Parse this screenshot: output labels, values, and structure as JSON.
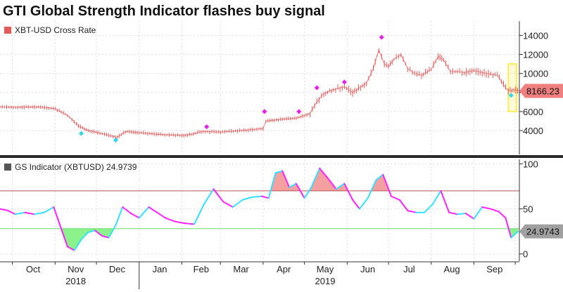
{
  "title": "GTI Global Strength Indicator flashes buy signal",
  "chart_data": [
    {
      "type": "line",
      "panel": "top",
      "legend": "XBT-USD Cross Rate",
      "last_value_label": "8166.23",
      "ylim": [
        1500,
        15500
      ],
      "yticks": [
        4000,
        6000,
        8000,
        10000,
        12000,
        14000
      ],
      "ytick_labels": [
        "4000",
        "6000",
        "8000",
        "10000",
        "12000",
        "14000"
      ],
      "series": [
        {
          "x": [
            "2018-09-22",
            "2018-10-05",
            "2018-10-20",
            "2018-11-01",
            "2018-11-10",
            "2018-11-18",
            "2018-11-25",
            "2018-12-02",
            "2018-12-10",
            "2018-12-16",
            "2018-12-22",
            "2019-01-01",
            "2019-01-15",
            "2019-02-01",
            "2019-02-08",
            "2019-02-15",
            "2019-03-01",
            "2019-03-15",
            "2019-04-01",
            "2019-04-03",
            "2019-04-15",
            "2019-04-25",
            "2019-05-05",
            "2019-05-10",
            "2019-05-15",
            "2019-05-22",
            "2019-05-30",
            "2019-06-05",
            "2019-06-15",
            "2019-06-20",
            "2019-06-24",
            "2019-06-26",
            "2019-06-28",
            "2019-07-01",
            "2019-07-05",
            "2019-07-10",
            "2019-07-15",
            "2019-07-20",
            "2019-07-25",
            "2019-08-01",
            "2019-08-06",
            "2019-08-10",
            "2019-08-15",
            "2019-08-20",
            "2019-08-25",
            "2019-09-01",
            "2019-09-10",
            "2019-09-18",
            "2019-09-24",
            "2019-09-26",
            "2019-09-30",
            "2019-10-04"
          ],
          "values": [
            6500,
            6450,
            6500,
            6300,
            5600,
            4500,
            4000,
            3800,
            3500,
            3300,
            3900,
            3800,
            3600,
            3500,
            3600,
            3900,
            3850,
            4000,
            4200,
            5000,
            5200,
            5300,
            5800,
            7000,
            7900,
            8300,
            8600,
            8000,
            9000,
            10500,
            12500,
            11700,
            11000,
            10700,
            11500,
            12000,
            10500,
            10000,
            9800,
            10400,
            11800,
            11400,
            10200,
            10200,
            10100,
            10300,
            10000,
            9800,
            8500,
            8200,
            8300,
            8166
          ]
        }
      ],
      "markers": [
        {
          "x": "2018-11-20",
          "y": 3700,
          "color": "#34d6e6"
        },
        {
          "x": "2018-12-15",
          "y": 3000,
          "color": "#34d6e6"
        },
        {
          "x": "2019-02-19",
          "y": 4400,
          "color": "#e620e6"
        },
        {
          "x": "2019-04-02",
          "y": 6000,
          "color": "#e620e6"
        },
        {
          "x": "2019-04-27",
          "y": 6000,
          "color": "#e620e6"
        },
        {
          "x": "2019-05-10",
          "y": 8500,
          "color": "#e620e6"
        },
        {
          "x": "2019-05-30",
          "y": 9100,
          "color": "#e620e6"
        },
        {
          "x": "2019-06-26",
          "y": 13800,
          "color": "#e620e6"
        },
        {
          "x": "2019-09-28",
          "y": 7700,
          "color": "#34d6e6"
        }
      ],
      "highlight": {
        "x0": "2019-09-26",
        "x1": "2019-10-02",
        "y0": 6000,
        "y1": 11000,
        "color": "#ffee55"
      }
    },
    {
      "type": "line",
      "panel": "bottom",
      "legend": "GS Indicator (XBTUSD) 24.9739",
      "last_value_label": "24.9743",
      "ylim": [
        -8,
        105
      ],
      "yticks": [
        0,
        50,
        100
      ],
      "ytick_labels": [
        "0",
        "50",
        "100"
      ],
      "upper_threshold": 70,
      "lower_threshold": 28,
      "series": [
        {
          "x": [
            "2018-09-22",
            "2018-09-28",
            "2018-10-03",
            "2018-10-10",
            "2018-10-17",
            "2018-10-24",
            "2018-10-31",
            "2018-11-05",
            "2018-11-10",
            "2018-11-15",
            "2018-11-20",
            "2018-11-25",
            "2018-11-30",
            "2018-12-05",
            "2018-12-10",
            "2018-12-15",
            "2018-12-20",
            "2018-12-26",
            "2019-01-01",
            "2019-01-08",
            "2019-01-14",
            "2019-01-20",
            "2019-01-27",
            "2019-02-03",
            "2019-02-10",
            "2019-02-17",
            "2019-02-24",
            "2019-03-03",
            "2019-03-10",
            "2019-03-17",
            "2019-03-24",
            "2019-03-31",
            "2019-04-05",
            "2019-04-10",
            "2019-04-15",
            "2019-04-20",
            "2019-04-25",
            "2019-05-01",
            "2019-05-06",
            "2019-05-12",
            "2019-05-18",
            "2019-05-24",
            "2019-05-30",
            "2019-06-05",
            "2019-06-10",
            "2019-06-16",
            "2019-06-22",
            "2019-06-27",
            "2019-07-03",
            "2019-07-09",
            "2019-07-15",
            "2019-07-21",
            "2019-07-27",
            "2019-08-02",
            "2019-08-08",
            "2019-08-14",
            "2019-08-20",
            "2019-08-26",
            "2019-09-01",
            "2019-09-07",
            "2019-09-13",
            "2019-09-19",
            "2019-09-24",
            "2019-09-28",
            "2019-10-03"
          ],
          "values": [
            50,
            48,
            44,
            46,
            44,
            46,
            52,
            30,
            8,
            4,
            16,
            24,
            26,
            20,
            18,
            32,
            52,
            45,
            40,
            52,
            46,
            40,
            36,
            34,
            33,
            55,
            72,
            58,
            52,
            60,
            63,
            64,
            62,
            90,
            92,
            74,
            78,
            62,
            74,
            95,
            84,
            72,
            78,
            60,
            50,
            62,
            82,
            88,
            64,
            60,
            48,
            46,
            46,
            55,
            70,
            46,
            44,
            45,
            39,
            52,
            50,
            47,
            40,
            18,
            25
          ]
        }
      ]
    }
  ],
  "x_axis": {
    "month_labels": [
      "Oct",
      "Nov",
      "Dec",
      "Jan",
      "Feb",
      "Mar",
      "Apr",
      "May",
      "Jun",
      "Jul",
      "Aug",
      "Sep"
    ],
    "year_labels": [
      "2018",
      "2019"
    ]
  },
  "colors": {
    "price": "#e35a5a",
    "price_marker_up": "#e620e6",
    "price_marker_down": "#34d6e6",
    "indicator_up": "#ff22ff",
    "indicator_down": "#33e0ff",
    "upper_line": "#c0504d",
    "upper_fill": "#f08080",
    "lower_line": "#66dd66",
    "lower_fill": "#66ee66",
    "badge_top": "#f08080",
    "badge_bottom": "#a0a0a0",
    "panel_divider": "#2a2a2a"
  }
}
